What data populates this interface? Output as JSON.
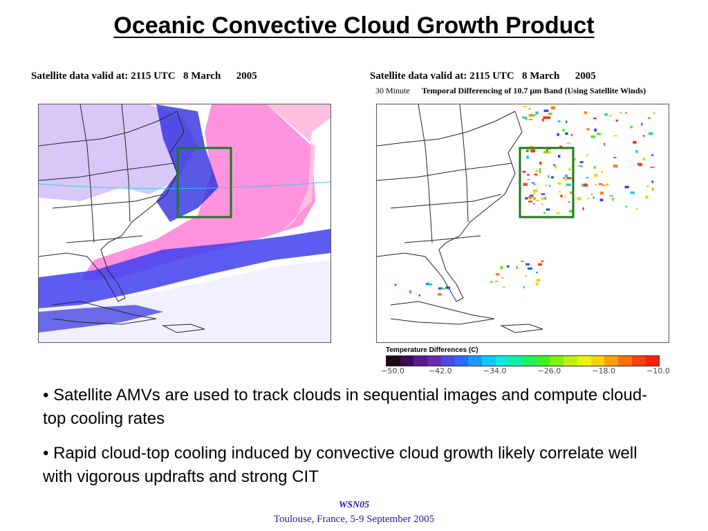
{
  "slide": {
    "title": "Oceanic Convective Cloud Growth Product",
    "bullets": [
      "• Satellite AMVs are used to track clouds in sequential images and compute cloud-top cooling rates",
      "• Rapid cloud-top cooling induced by convective cloud growth likely correlate well with vigorous updrafts and strong CIT"
    ],
    "footer": {
      "line1": "WSN05",
      "line2": "Toulouse, France, 5-9 September 2005"
    }
  },
  "left_panel": {
    "caption": "Satellite data valid at: 2115 UTC   8 March      2005",
    "highlight_color": "#1a7a1a"
  },
  "right_panel": {
    "caption": "Satellite data valid at: 2115 UTC   8 March      2005",
    "subcaption_prefix": "30 Minute",
    "subcaption": "Temporal Differencing of 10.7 µm Band (Using Satellite Winds)",
    "highlight_color": "#1a7a1a",
    "colorbar": {
      "title": "Temperature Differences (C)",
      "tick_labels": [
        "−50.0",
        "−42.0",
        "−34.0",
        "−26.0",
        "−18.0",
        "−10.0"
      ],
      "tick_values": [
        -50,
        -42,
        -34,
        -26,
        -18,
        -10
      ],
      "range": [
        -50,
        -10
      ],
      "colors": [
        "#1a0a1a",
        "#3a0a5a",
        "#5a1a8a",
        "#6a2ab0",
        "#4a4ae0",
        "#2a6aff",
        "#1a9aff",
        "#10c8ff",
        "#10e8e0",
        "#10f0a0",
        "#20f060",
        "#40f020",
        "#80f010",
        "#c0f010",
        "#f0f010",
        "#f8d010",
        "#f8a010",
        "#f87010",
        "#f84010",
        "#f82010"
      ]
    },
    "sample_marks": {
      "colors": [
        "#ff3010",
        "#ff8010",
        "#f0d010",
        "#60e020",
        "#20c8e0",
        "#2040ff"
      ]
    }
  }
}
